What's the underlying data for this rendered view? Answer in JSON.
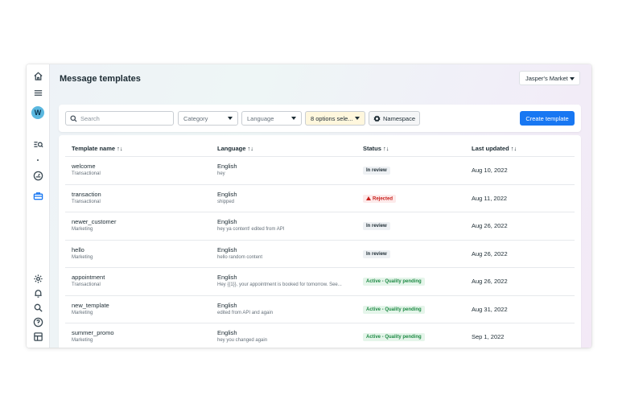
{
  "nav": {
    "avatar_letter": "W"
  },
  "page": {
    "title": "Message templates",
    "account": "Jasper's Market"
  },
  "toolbar": {
    "search_placeholder": "Search",
    "category_label": "Category",
    "language_label": "Language",
    "status_filter_label": "8 options sele...",
    "namespace_label": "Namespace",
    "create_label": "Create template"
  },
  "table": {
    "columns": [
      "Template name ↑↓",
      "Language ↑↓",
      "Status ↑↓",
      "Last updated ↑↓"
    ],
    "rows": [
      {
        "name": "welcome",
        "category": "Transactional",
        "language": "English",
        "preview": "hey",
        "status": "In review",
        "status_kind": "review",
        "updated": "Aug 10, 2022"
      },
      {
        "name": "transaction",
        "category": "Transactional",
        "language": "English",
        "preview": "shipped",
        "status": "Rejected",
        "status_kind": "rejected",
        "updated": "Aug 11, 2022"
      },
      {
        "name": "newer_customer",
        "category": "Marketing",
        "language": "English",
        "preview": "hey ya content! edited from API",
        "status": "In review",
        "status_kind": "review",
        "updated": "Aug 26, 2022"
      },
      {
        "name": "hello",
        "category": "Marketing",
        "language": "English",
        "preview": "hello random content",
        "status": "In review",
        "status_kind": "review",
        "updated": "Aug 26, 2022"
      },
      {
        "name": "appointment",
        "category": "Transactional",
        "language": "English",
        "preview": "Hey {{1}}, your appointment is booked for tomorrow. See...",
        "status": "Active - Quality pending",
        "status_kind": "active",
        "updated": "Aug 26, 2022"
      },
      {
        "name": "new_template",
        "category": "Marketing",
        "language": "English",
        "preview": "edited from API and again",
        "status": "Active - Quality pending",
        "status_kind": "active",
        "updated": "Aug 31, 2022"
      },
      {
        "name": "summer_promo",
        "category": "Marketing",
        "language": "English",
        "preview": "hey you changed again",
        "status": "Active - Quality pending",
        "status_kind": "active",
        "updated": "Sep 1, 2022"
      }
    ]
  },
  "colors": {
    "primary": "#1877f2",
    "rejected": "#c8211d",
    "active": "#1e8a44"
  }
}
